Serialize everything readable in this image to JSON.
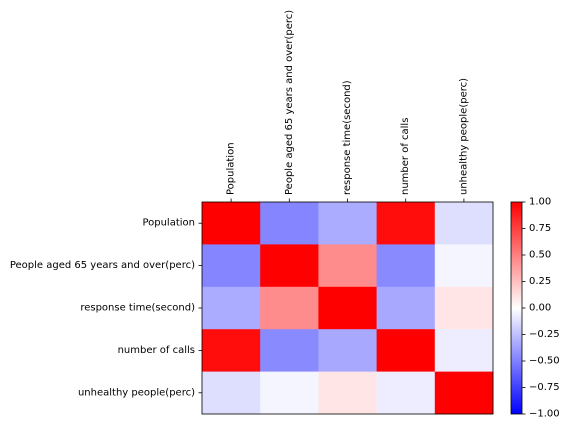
{
  "chart_data": {
    "type": "heatmap",
    "row_labels": [
      "Population",
      "People aged 65 years and over(perc)",
      "response time(second)",
      "number of calls",
      "unhealthy people(perc)"
    ],
    "column_labels": [
      "Population",
      "People aged 65 years and over(perc)",
      "response time(second)",
      "number of calls",
      "unhealthy people(perc)"
    ],
    "values": [
      [
        1.0,
        -0.48,
        -0.33,
        0.95,
        -0.13
      ],
      [
        -0.48,
        1.0,
        0.45,
        -0.46,
        -0.04
      ],
      [
        -0.33,
        0.45,
        1.0,
        -0.34,
        0.1
      ],
      [
        0.95,
        -0.46,
        -0.34,
        1.0,
        -0.07
      ],
      [
        -0.13,
        -0.04,
        0.1,
        -0.07,
        1.0
      ]
    ],
    "colormap": "bwr",
    "vmin": -1.0,
    "vmax": 1.0,
    "colorbar_ticks": [
      "1.00",
      "0.75",
      "0.50",
      "0.25",
      "0.00",
      "−0.25",
      "−0.50",
      "−0.75",
      "−1.00"
    ],
    "colorbar_tick_values": [
      1.0,
      0.75,
      0.5,
      0.25,
      0.0,
      -0.25,
      -0.5,
      -0.75,
      -1.0
    ],
    "x_ticks_position": "top",
    "grid": false
  }
}
